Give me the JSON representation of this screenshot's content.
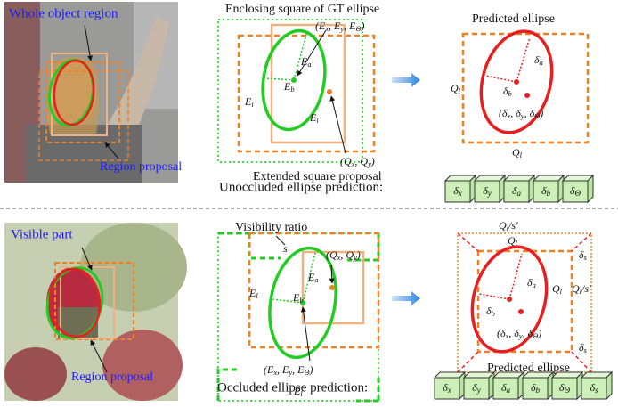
{
  "top": {
    "photo_labels": [
      "Whole object region",
      "Region proposal"
    ],
    "enclosing": "Enclosing square of GT ellipse",
    "extended": "Extended square proposal",
    "predicted": "Predicted ellipse",
    "caption": "Unoccluded ellipse prediction:",
    "math": [
      [
        {
          "text": "E"
        },
        {
          "sub": "l"
        }
      ],
      [
        {
          "text": "(E"
        },
        {
          "sub": "x"
        },
        {
          "text": ", E"
        },
        {
          "sub": "y"
        },
        {
          "text": ", E"
        },
        {
          "sub": "Θ"
        },
        {
          "text": ")"
        }
      ],
      [
        {
          "text": "E"
        },
        {
          "sub": "a"
        }
      ],
      [
        {
          "text": "E"
        },
        {
          "sub": "b"
        }
      ],
      [
        {
          "text": "E"
        },
        {
          "sub": "l"
        }
      ],
      [
        {
          "text": "(Q"
        },
        {
          "sub": "x"
        },
        {
          "text": ", Q"
        },
        {
          "sub": "y"
        },
        {
          "text": ")"
        }
      ],
      [
        {
          "text": "Q"
        },
        {
          "sub": "l"
        }
      ],
      [
        {
          "text": "Q"
        },
        {
          "sub": "l"
        }
      ],
      [
        {
          "text": "δ"
        },
        {
          "sub": "a"
        }
      ],
      [
        {
          "text": "δ"
        },
        {
          "sub": "b"
        }
      ],
      [
        {
          "text": "(δ"
        },
        {
          "sub": "x"
        },
        {
          "text": ", δ"
        },
        {
          "sub": "y"
        },
        {
          "text": ", δ"
        },
        {
          "sub": "Θ"
        },
        {
          "text": ")"
        }
      ]
    ],
    "params": [
      [
        {
          "text": "δ"
        },
        {
          "sub": "x"
        }
      ],
      [
        {
          "text": "δ"
        },
        {
          "sub": "y"
        }
      ],
      [
        {
          "text": "δ"
        },
        {
          "sub": "a"
        }
      ],
      [
        {
          "text": "δ"
        },
        {
          "sub": "b"
        }
      ],
      [
        {
          "text": "δ"
        },
        {
          "sub": "Θ"
        }
      ]
    ]
  },
  "bottom": {
    "photo_labels": [
      "Visible part",
      "Region proposal"
    ],
    "visibility": "Visibility ratio",
    "predicted": "Predicted ellipse",
    "caption": "Occluded ellipse prediction:",
    "math": [
      [
        {
          "text": "s"
        }
      ],
      [
        {
          "text": "E"
        },
        {
          "sub": "l"
        }
      ],
      [
        {
          "text": "E"
        },
        {
          "sub": "a"
        }
      ],
      [
        {
          "text": "E"
        },
        {
          "sub": "b"
        }
      ],
      [
        {
          "text": "(Q"
        },
        {
          "sub": "x"
        },
        {
          "text": ", Q"
        },
        {
          "sub": "y"
        },
        {
          "text": ")"
        }
      ],
      [
        {
          "text": "(E"
        },
        {
          "sub": "x"
        },
        {
          "text": ", E"
        },
        {
          "sub": "y"
        },
        {
          "text": ", E"
        },
        {
          "sub": "Θ"
        },
        {
          "text": ")"
        }
      ],
      [
        {
          "text": "E"
        },
        {
          "sub": "l"
        }
      ],
      [
        {
          "text": "Q"
        },
        {
          "sub": "l"
        },
        {
          "text": "/s′"
        }
      ],
      [
        {
          "text": "Q"
        },
        {
          "sub": "l"
        }
      ],
      [
        {
          "text": "δ"
        },
        {
          "sub": "s"
        }
      ],
      [
        {
          "text": "δ"
        },
        {
          "sub": "a"
        }
      ],
      [
        {
          "text": "δ"
        },
        {
          "sub": "b"
        }
      ],
      [
        {
          "text": "(δ"
        },
        {
          "sub": "x"
        },
        {
          "text": ", δ"
        },
        {
          "sub": "y"
        },
        {
          "text": ", δ"
        },
        {
          "sub": "Θ"
        },
        {
          "text": ")"
        }
      ],
      [
        {
          "text": "Q"
        },
        {
          "sub": "l"
        }
      ],
      [
        {
          "text": "Q"
        },
        {
          "sub": "l"
        },
        {
          "text": "/s′"
        }
      ],
      [
        {
          "text": "δ"
        },
        {
          "sub": "s"
        }
      ]
    ],
    "params": [
      [
        {
          "text": "δ"
        },
        {
          "sub": "x"
        }
      ],
      [
        {
          "text": "δ"
        },
        {
          "sub": "y"
        }
      ],
      [
        {
          "text": "δ"
        },
        {
          "sub": "a"
        }
      ],
      [
        {
          "text": "δ"
        },
        {
          "sub": "b"
        }
      ],
      [
        {
          "text": "δ"
        },
        {
          "sub": "Θ"
        }
      ],
      [
        {
          "text": "δ"
        },
        {
          "sub": "s"
        }
      ]
    ]
  }
}
